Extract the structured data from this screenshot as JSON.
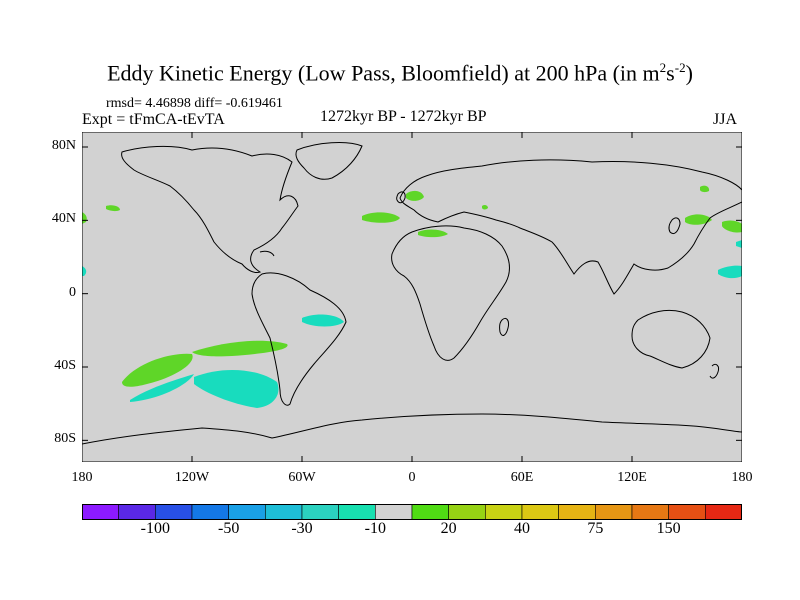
{
  "title": {
    "main": "Eddy Kinetic Energy (Low Pass, Bloomfield) at 200 hPa (in m",
    "sup1": "2",
    "mid": "s",
    "sup2": "-2",
    "end": ")"
  },
  "stats_text": "rmsd= 4.46898 diff= -0.619461",
  "expt_text": "Expt = tFmCA-tEvTA",
  "period_text": "1272kyr BP - 1272kyr BP",
  "season_text": "JJA",
  "map": {
    "background_color": "#d2d2d2",
    "coast_color": "#000000",
    "lat_ticks": [
      "80N",
      "40N",
      "0",
      "40S",
      "80S"
    ],
    "lon_ticks": [
      "180",
      "120W",
      "60W",
      "0",
      "60E",
      "120E",
      "180"
    ]
  },
  "colorbar": {
    "colors": [
      "#8c1aff",
      "#5a28e6",
      "#2850e6",
      "#1478e6",
      "#1aa0e6",
      "#1ebed7",
      "#2bd2c0",
      "#18e0b0",
      "#d2d2d2",
      "#50dc14",
      "#96d214",
      "#c8d214",
      "#dcc814",
      "#e6b414",
      "#e69614",
      "#e67814",
      "#e65014",
      "#e62814"
    ],
    "labels": [
      "-100",
      "-50",
      "-30",
      "-10",
      "20",
      "40",
      "75",
      "150"
    ]
  },
  "anomaly_colors": {
    "positive": "#5fd628",
    "negative": "#18dcbe"
  }
}
